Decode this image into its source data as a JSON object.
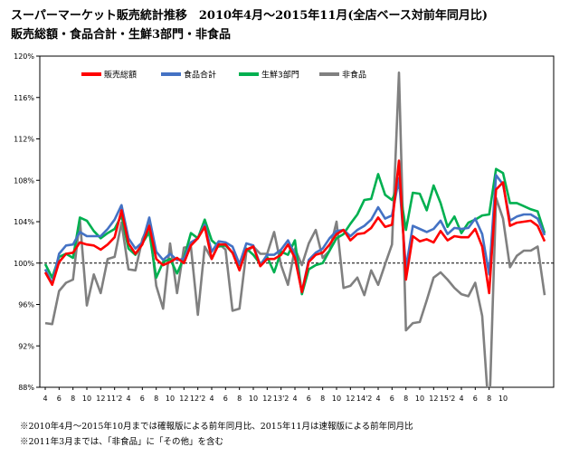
{
  "title": "スーパーマーケット販売統計推移　2010年4月～2015年11月(全店ベース対前年同月比)",
  "subtitle": "販売総額・食品合計・生鮮3部門・非食品",
  "notes": [
    "※2010年4月～2015年10月までは確報版による前年同月比、2015年11月は速報版による前年同月比",
    "※2011年3月までは、「非食品」に「その他」を含む"
  ],
  "chart_data": {
    "type": "line",
    "title": "",
    "xlabel": "",
    "ylabel": "",
    "ylim": [
      88,
      120
    ],
    "yticks": [
      88,
      92,
      96,
      100,
      104,
      108,
      112,
      116,
      120
    ],
    "ytick_labels": [
      "88%",
      "92%",
      "96%",
      "100%",
      "104%",
      "108%",
      "112%",
      "116%",
      "120%"
    ],
    "reference_line": 100,
    "x_tick_labels": [
      "4",
      "6",
      "8",
      "10",
      "12",
      "11'2",
      "4",
      "6",
      "8",
      "10",
      "12",
      "12'2",
      "4",
      "6",
      "8",
      "10",
      "12",
      "13'2",
      "4",
      "6",
      "8",
      "10",
      "12",
      "14'2",
      "4",
      "6",
      "8",
      "10",
      "12",
      "15'2",
      "4",
      "6",
      "8",
      "10"
    ],
    "legend_position": "top",
    "series": [
      {
        "name": "販売総額",
        "color": "#ff0000",
        "values": [
          99.1,
          97.9,
          100.1,
          100.9,
          101.0,
          102.0,
          101.8,
          101.7,
          101.3,
          101.8,
          102.5,
          105.1,
          101.9,
          100.9,
          101.8,
          103.6,
          100.4,
          99.8,
          100.1,
          100.5,
          100.0,
          101.7,
          102.4,
          103.5,
          100.4,
          101.8,
          101.8,
          101.0,
          99.3,
          101.3,
          101.6,
          99.7,
          100.4,
          100.4,
          100.8,
          101.8,
          100.5,
          97.2,
          100.1,
          100.8,
          101.0,
          101.8,
          102.8,
          103.2,
          102.2,
          102.8,
          102.9,
          103.4,
          104.4,
          103.5,
          103.7,
          109.9,
          98.4,
          102.6,
          102.1,
          102.3,
          102.0,
          103.1,
          102.2,
          102.6,
          102.5,
          102.5,
          103.3,
          101.6,
          97.1,
          107.1,
          107.8,
          103.6,
          103.9,
          104.0,
          104.1,
          103.6,
          102.1
        ]
      },
      {
        "name": "食品合計",
        "color": "#4472c4",
        "values": [
          99.4,
          98.0,
          100.9,
          101.7,
          101.8,
          103.0,
          102.6,
          102.6,
          102.6,
          103.3,
          104.2,
          105.6,
          102.4,
          101.4,
          102.0,
          104.4,
          101.1,
          100.3,
          100.9,
          100.3,
          100.4,
          102.0,
          102.4,
          103.7,
          101.1,
          102.1,
          102.0,
          101.6,
          99.9,
          101.9,
          101.7,
          99.8,
          100.8,
          100.8,
          101.3,
          102.2,
          100.8,
          97.2,
          100.3,
          101.0,
          101.4,
          102.4,
          103.1,
          103.2,
          102.6,
          103.2,
          103.6,
          104.2,
          105.4,
          104.3,
          104.6,
          108.2,
          99.5,
          103.6,
          103.3,
          103.0,
          103.3,
          104.1,
          102.8,
          103.4,
          103.3,
          103.4,
          104.3,
          102.8,
          98.9,
          108.5,
          107.6,
          104.1,
          104.5,
          104.7,
          104.7,
          104.3,
          102.7
        ]
      },
      {
        "name": "生鮮3部門",
        "color": "#00b050",
        "values": [
          99.9,
          98.6,
          100.6,
          100.9,
          100.5,
          104.4,
          104.1,
          103.1,
          102.4,
          102.9,
          103.3,
          104.6,
          101.4,
          100.8,
          101.9,
          103.0,
          98.6,
          100.1,
          100.4,
          99.0,
          100.5,
          102.9,
          102.4,
          104.2,
          102.2,
          101.6,
          101.7,
          101.0,
          99.8,
          101.4,
          100.8,
          99.9,
          100.6,
          99.1,
          101.1,
          100.8,
          102.2,
          97.0,
          99.4,
          99.8,
          100.0,
          101.2,
          102.4,
          102.8,
          103.8,
          104.7,
          106.1,
          106.2,
          108.6,
          106.6,
          106.1,
          107.6,
          103.2,
          106.8,
          106.7,
          105.1,
          107.5,
          105.8,
          103.5,
          104.5,
          102.9,
          103.9,
          104.2,
          104.6,
          104.7,
          109.1,
          108.7,
          105.8,
          105.8,
          105.5,
          105.2,
          105.0,
          102.9
        ]
      },
      {
        "name": "非食品",
        "color": "#808080",
        "values": [
          94.2,
          94.1,
          97.3,
          98.1,
          98.4,
          104.2,
          95.9,
          98.9,
          97.1,
          100.4,
          100.6,
          103.9,
          99.4,
          99.3,
          102.3,
          103.8,
          97.8,
          95.6,
          101.9,
          97.1,
          101.5,
          101.6,
          95.0,
          101.6,
          100.4,
          101.9,
          101.3,
          95.4,
          95.6,
          101.1,
          101.6,
          100.9,
          100.9,
          103.0,
          99.8,
          97.9,
          101.4,
          99.8,
          101.9,
          103.2,
          100.5,
          101.2,
          104.0,
          97.6,
          97.8,
          98.6,
          96.9,
          99.3,
          97.9,
          99.9,
          101.8,
          118.4,
          93.5,
          94.2,
          94.3,
          96.4,
          98.6,
          99.1,
          98.4,
          97.6,
          97.0,
          96.8,
          98.1,
          94.9,
          85.0,
          106.3,
          104.3,
          99.6,
          100.7,
          101.2,
          101.2,
          101.6,
          96.9
        ]
      }
    ]
  }
}
